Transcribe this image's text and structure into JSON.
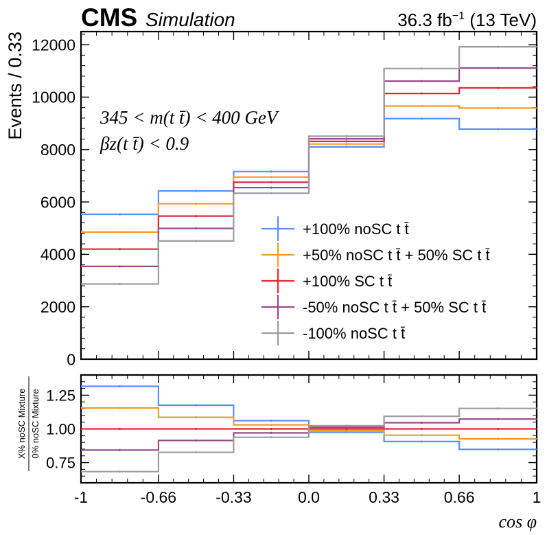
{
  "header": {
    "experiment": "CMS",
    "label": "Simulation",
    "lumi_value": "36.3 fb",
    "lumi_exp": "−1",
    "energy": "(13 TeV)"
  },
  "annotation": {
    "line1": "345 < m(t t̄) < 400 GeV",
    "line2": "βz(t t̄) < 0.9"
  },
  "chart_data": [
    {
      "type": "line",
      "step": true,
      "title": "",
      "ylabel": "Events / 0.33",
      "xlabel": "",
      "bin_edges": [
        -1,
        -0.66,
        -0.33,
        0.0,
        0.33,
        0.66,
        1
      ],
      "xticks": [
        "-1",
        "-0.66",
        "-0.33",
        "0.0",
        "0.33",
        "0.66",
        "1"
      ],
      "ylim": [
        0,
        12500
      ],
      "yticks": [
        "0",
        "2000",
        "4000",
        "6000",
        "8000",
        "10000",
        "12000"
      ],
      "ytick_values": [
        0,
        2000,
        4000,
        6000,
        8000,
        10000,
        12000
      ],
      "legend_position": "bottom-right",
      "series": [
        {
          "name": "+100% noSC t t̄",
          "color": "#5790fc",
          "values": [
            5530,
            6420,
            7160,
            8100,
            9180,
            8780
          ]
        },
        {
          "name": "+50% noSC t t̄ + 50% SC t t̄",
          "color": "#f89c20",
          "values": [
            4850,
            5930,
            6950,
            8210,
            9660,
            9580
          ]
        },
        {
          "name": "+100% SC t t̄",
          "color": "#e42536",
          "values": [
            4200,
            5460,
            6750,
            8310,
            10140,
            10350
          ]
        },
        {
          "name": "-50% noSC t t̄ + 50% SC t t̄",
          "color": "#964a8b",
          "values": [
            3540,
            4990,
            6550,
            8410,
            10610,
            11110
          ]
        },
        {
          "name": "-100% noSC t t̄",
          "color": "#9c9ca1",
          "values": [
            2870,
            4510,
            6330,
            8510,
            11090,
            11920
          ]
        }
      ]
    },
    {
      "type": "line",
      "step": true,
      "ylabel_top": "X% noSC Mixture",
      "ylabel_bottom": "0% noSC Mixture",
      "xlabel": "cos φ",
      "bin_edges": [
        -1,
        -0.66,
        -0.33,
        0.0,
        0.33,
        0.66,
        1
      ],
      "xticks": [
        "-1",
        "-0.66",
        "-0.33",
        "0.0",
        "0.33",
        "0.66",
        "1"
      ],
      "ylim": [
        0.6,
        1.4
      ],
      "yticks": [
        "0.75",
        "1.00",
        "1.25"
      ],
      "ytick_values": [
        0.75,
        1.0,
        1.25
      ],
      "series": [
        {
          "name": "+100% noSC t t̄",
          "color": "#5790fc",
          "values": [
            1.316,
            1.176,
            1.061,
            0.975,
            0.906,
            0.848
          ]
        },
        {
          "name": "+50% noSC t t̄ + 50% SC t t̄",
          "color": "#f89c20",
          "values": [
            1.155,
            1.086,
            1.03,
            0.988,
            0.953,
            0.926
          ]
        },
        {
          "name": "+100% SC t t̄",
          "color": "#e42536",
          "values": [
            1.0,
            1.0,
            1.0,
            1.0,
            1.0,
            1.0
          ]
        },
        {
          "name": "-50% noSC t t̄ + 50% SC t t̄",
          "color": "#964a8b",
          "values": [
            0.843,
            0.914,
            0.97,
            1.012,
            1.046,
            1.073
          ]
        },
        {
          "name": "-100% noSC t t̄",
          "color": "#9c9ca1",
          "values": [
            0.683,
            0.826,
            0.938,
            1.024,
            1.094,
            1.152
          ]
        }
      ]
    }
  ]
}
